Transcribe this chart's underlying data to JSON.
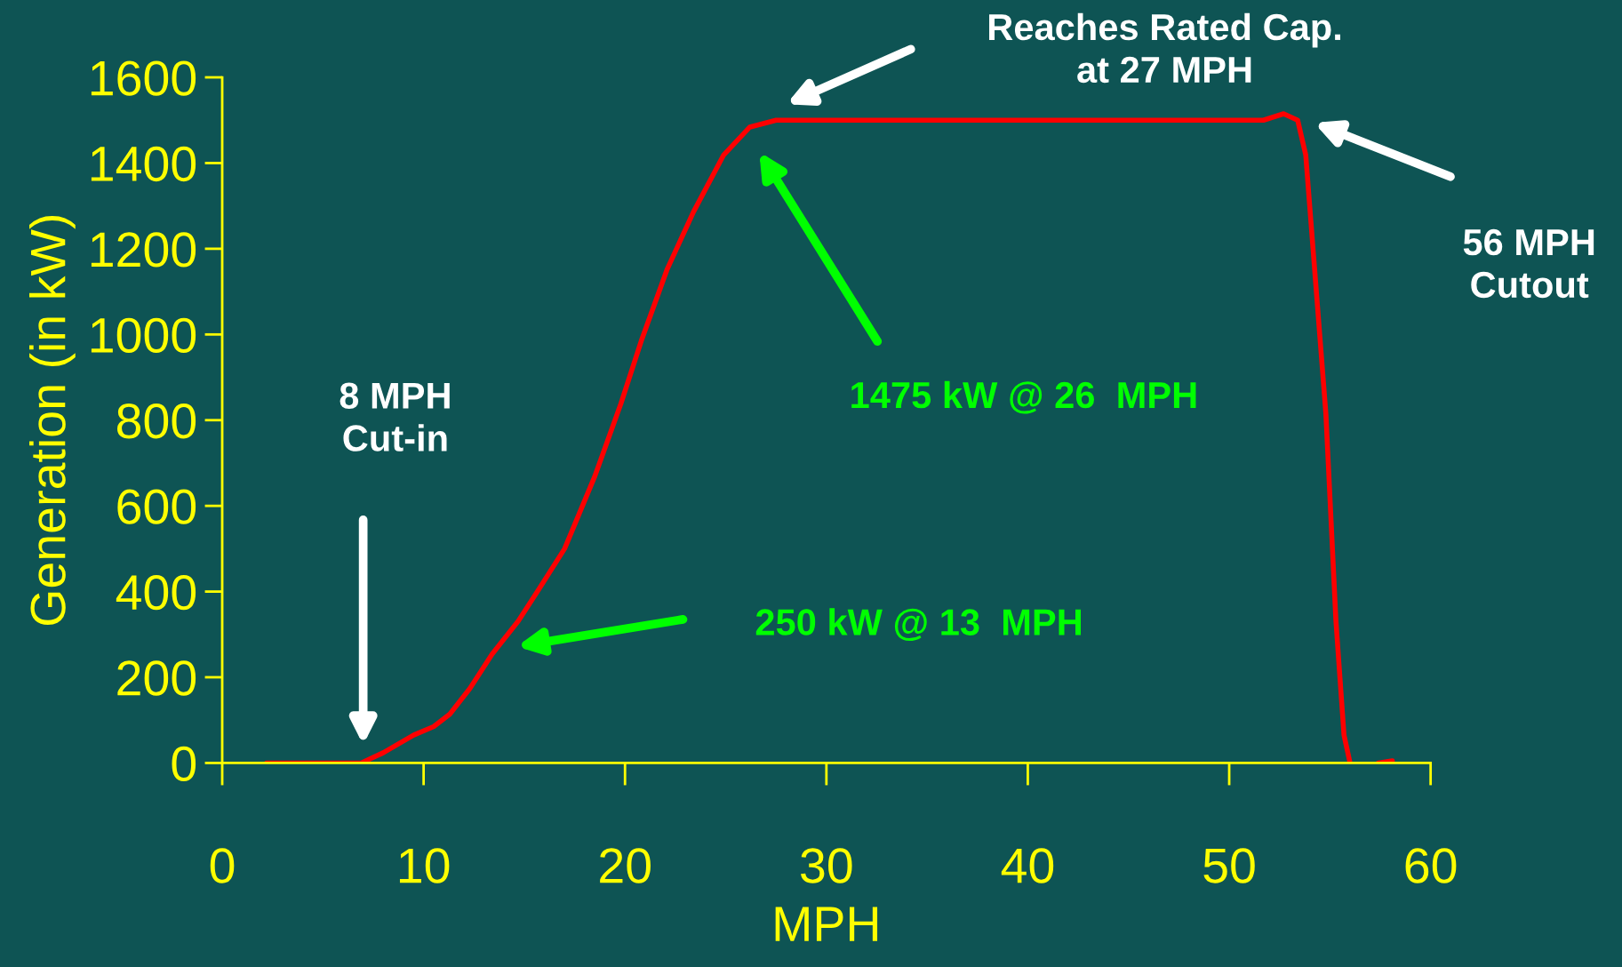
{
  "chart_data": {
    "type": "line",
    "xlabel": "MPH",
    "ylabel": "Generation (in kW)",
    "x": [
      2.2,
      4.4,
      5.4,
      6.4,
      6.9,
      8.0,
      9.5,
      10.5,
      11.3,
      12.3,
      13.4,
      14.7,
      15.7,
      17.0,
      18.5,
      19.8,
      20.8,
      22.1,
      23.4,
      24.9,
      26.2,
      27.5,
      51.7,
      52.7,
      53.4,
      53.8,
      54.2,
      54.8,
      55.3,
      55.7,
      56.0,
      57.0,
      57.4,
      58.1
    ],
    "series": [
      {
        "color": "#ff0000",
        "values": [
          0,
          0,
          0,
          0,
          0,
          24,
          65,
          85,
          114,
          174,
          254,
          331,
          404,
          500,
          669,
          839,
          984,
          1153,
          1286,
          1419,
          1484,
          1500,
          1500,
          1515,
          1500,
          1419,
          1177,
          815,
          331,
          65,
          0,
          null,
          0,
          5
        ]
      }
    ],
    "xlim": [
      0,
      60
    ],
    "xticks": [
      0,
      10,
      20,
      30,
      40,
      50,
      60
    ],
    "ylim": [
      0,
      1600
    ],
    "yticks": [
      0,
      200,
      400,
      600,
      800,
      1000,
      1200,
      1400,
      1600
    ],
    "grid": false,
    "legend": false,
    "marker": "none",
    "line_style": "solid",
    "annotations": [
      "8 MPH\nCut-in",
      "250 kW @ 13  MPH",
      "1475 kW @ 26  MPH",
      "Reaches Rated Cap.\nat 27 MPH",
      "56 MPH\nCutout"
    ]
  }
}
